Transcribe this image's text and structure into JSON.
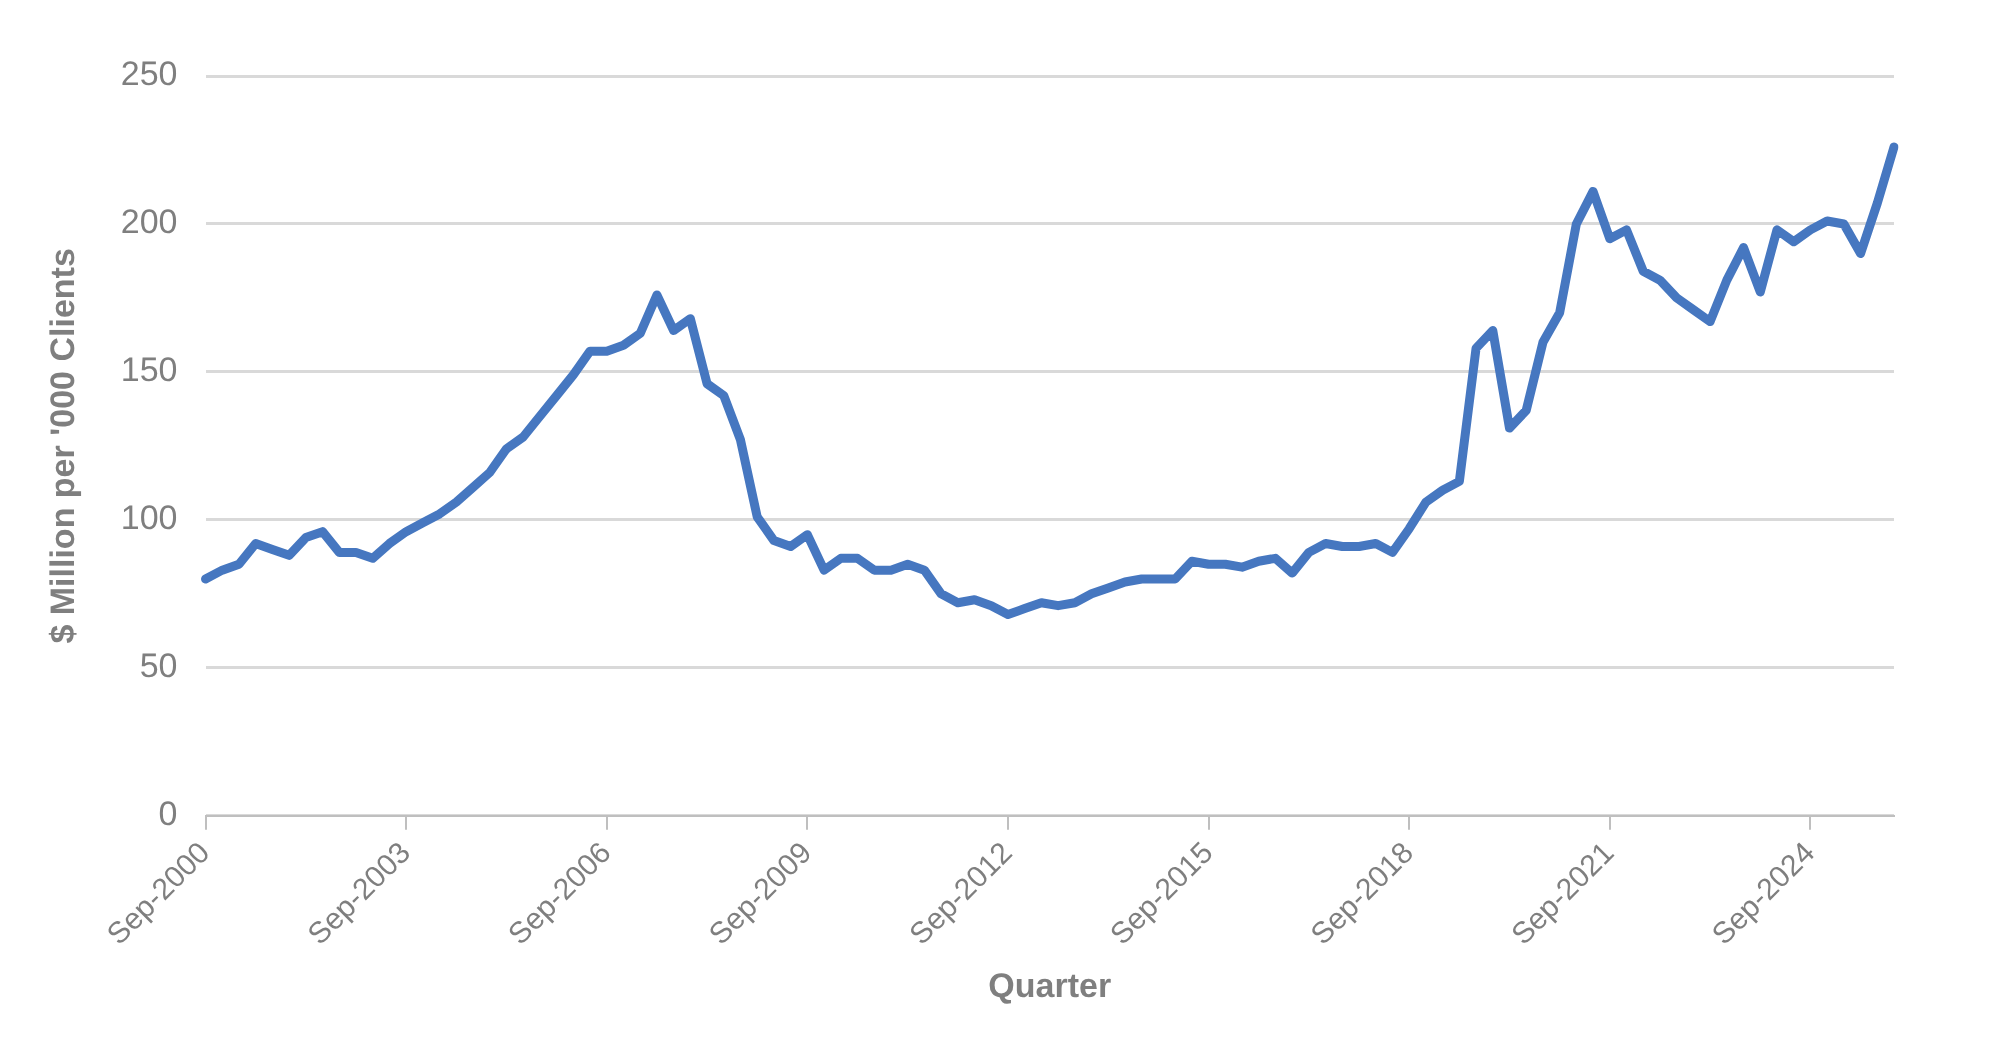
{
  "chart_data": {
    "type": "line",
    "xlabel": "Quarter",
    "ylabel": "$ Million per '000 Clients",
    "categories": [
      "Sep-2000",
      null,
      null,
      null,
      null,
      null,
      null,
      null,
      null,
      null,
      null,
      null,
      "Sep-2003",
      null,
      null,
      null,
      null,
      null,
      null,
      null,
      null,
      null,
      null,
      null,
      "Sep-2006",
      null,
      null,
      null,
      null,
      null,
      null,
      null,
      null,
      null,
      null,
      null,
      "Sep-2009",
      null,
      null,
      null,
      null,
      null,
      null,
      null,
      null,
      null,
      null,
      null,
      "Sep-2012",
      null,
      null,
      null,
      null,
      null,
      null,
      null,
      null,
      null,
      null,
      null,
      "Sep-2015",
      null,
      null,
      null,
      null,
      null,
      null,
      null,
      null,
      null,
      null,
      null,
      "Sep-2018",
      null,
      null,
      null,
      null,
      null,
      null,
      null,
      null,
      null,
      null,
      null,
      "Sep-2021",
      null,
      null,
      null,
      null,
      null,
      null,
      null,
      null,
      null,
      null,
      null,
      "Sep-2024",
      null,
      null,
      null,
      null,
      null
    ],
    "series": [
      {
        "color": "#4677c0",
        "values": [
          80,
          83,
          85,
          92,
          90,
          88,
          94,
          96,
          89,
          89,
          87,
          92,
          96,
          99,
          102,
          106,
          111,
          116,
          124,
          128,
          135,
          142,
          149,
          157,
          157,
          159,
          163,
          176,
          164,
          168,
          146,
          142,
          127,
          101,
          93,
          91,
          95,
          83,
          87,
          87,
          83,
          83,
          85,
          83,
          75,
          72,
          73,
          71,
          68,
          70,
          72,
          71,
          72,
          75,
          77,
          79,
          80,
          80,
          80,
          86,
          85,
          85,
          84,
          86,
          87,
          82,
          89,
          92,
          91,
          91,
          92,
          89,
          97,
          106,
          110,
          113,
          158,
          164,
          131,
          137,
          160,
          170,
          200,
          211,
          195,
          198,
          184,
          181,
          175,
          171,
          167,
          181,
          192,
          177,
          198,
          194,
          198,
          201,
          200,
          190,
          207,
          226
        ]
      }
    ],
    "ylim": [
      0,
      250
    ],
    "yticks": [
      0,
      50,
      100,
      150,
      200,
      250
    ],
    "grid": "y",
    "legend": false,
    "marker": "none",
    "line_style": "solid"
  }
}
